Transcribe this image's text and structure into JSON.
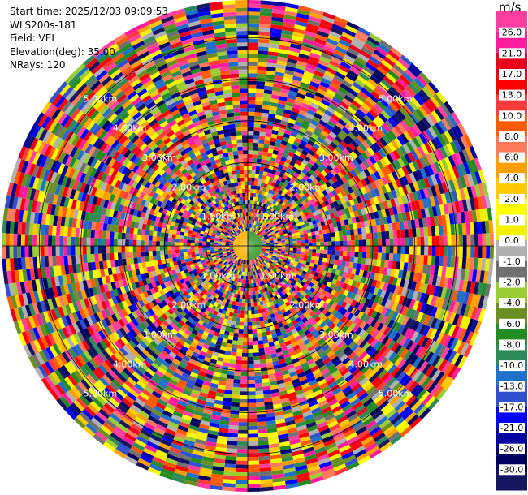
{
  "header": {
    "start_time": "Start time: 2025/12/03 09:09:53",
    "instrument": "WLS200s-181",
    "field": "Field: VEL",
    "elevation": "Elevation(deg): 35.00",
    "nrays": "NRays: 120"
  },
  "colorbar": {
    "units": "m/s",
    "ticks": [
      "26.0",
      "21.0",
      "17.0",
      "13.0",
      "10.0",
      "8.0",
      "6.0",
      "4.0",
      "2.0",
      "1.0",
      "0.0",
      "-1.0",
      "-2.0",
      "-4.0",
      "-6.0",
      "-8.0",
      "-10.0",
      "-13.0",
      "-17.0",
      "-21.0",
      "-26.0",
      "-30.0"
    ],
    "colors": [
      "#ff3ea0",
      "#ff1c9c",
      "#e8001e",
      "#ff0000",
      "#ff3a3a",
      "#ff5a00",
      "#ff7a5a",
      "#ffa000",
      "#ffc800",
      "#ffff00",
      "#f0f000",
      "#b0b0b0",
      "#707070",
      "#9acd32",
      "#6b8e23",
      "#228b22",
      "#2e8b57",
      "#1e70c8",
      "#3050d0",
      "#0000ff",
      "#0000a0",
      "#000060",
      "#151560"
    ]
  },
  "rings": {
    "labels": [
      "1.00km",
      "2.00km",
      "3.00km",
      "4.00km",
      "5.00km"
    ]
  },
  "chart_data": {
    "type": "ppi",
    "field": "VEL",
    "units": "m/s",
    "elevation_deg": 35.0,
    "n_rays": 120,
    "range_rings_km": [
      1,
      2,
      3,
      4,
      5
    ],
    "max_range_km": 5.9,
    "value_range": [
      -30.0,
      26.0
    ]
  }
}
